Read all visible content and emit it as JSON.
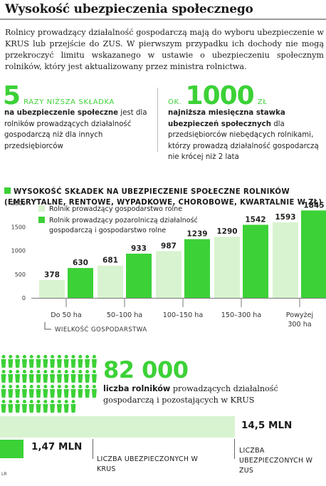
{
  "title": "Wysokość ubezpieczenia społecznego",
  "intro": "Rolnicy prowadzący działalność gospodarczą mają do wyboru ubezpieczenie w KRUS lub przejście do ZUS. W pierwszym przypadku ich dochody nie mogą przekroczyć limitu wskazanego w ustawie o ubezpieczeniu społecznym rolników, który jest aktualizowany przez ministra rolnictwa.",
  "stat_left": {
    "number": "5",
    "unit": "razy niższa składka",
    "desc_bold": "na ubezpieczenie społeczne",
    "desc_rest": " jest dla rolników prowadzących działalność gospodarczą niż dla innych przedsiębiorców"
  },
  "stat_right": {
    "prefix": "ok.",
    "number": "1000",
    "unit": "zł",
    "desc_bold": "najniższa miesięczna stawka ubezpieczeń społecznych",
    "desc_rest": " dla przedsiębiorców niebędących rolnikami, którzy prowadzą działalność gospodarczą nie krócej niż 2 lata"
  },
  "chart_title": "Wysokość składek na ubezpieczenie społeczne rolników (emerytalne, rentowe, wypadkowe, chorobowe, kwartalnie w zł)",
  "chart_data": {
    "type": "bar",
    "title": "Wysokość składek na ubezpieczenie społeczne rolników (emerytalne, rentowe, wypadkowe, chorobowe, kwartalnie w zł)",
    "categories": [
      "Do 50 ha",
      "50–100 ha",
      "100–150 ha",
      "150–300 ha",
      "Powyżej 300 ha"
    ],
    "series": [
      {
        "name": "Rolnik prowadzący gospodarstwo rolne",
        "color": "#d8f3cf",
        "values": [
          378,
          681,
          987,
          1290,
          1593
        ]
      },
      {
        "name": "Rolnik prowadzący pozarolniczą działalność gospodarczą i gospodarstwo rolne",
        "color": "#3cd137",
        "values": [
          630,
          933,
          1239,
          1542,
          1845
        ]
      }
    ],
    "xlabel": "Wielkość gospodarstwa",
    "ylabel": "",
    "ylim": [
      0,
      2000
    ],
    "yticks": [
      0,
      500,
      1000,
      1500,
      2000
    ],
    "legend": "top-left",
    "grid": false
  },
  "count": {
    "number": "82 000",
    "desc_bold": "liczba rolników",
    "desc_rest": " prowadzących działalność gospodarczą i pozostających w KRUS"
  },
  "comparison": {
    "krus": {
      "value": "1,47 MLN",
      "amount": 1.47,
      "label": "Liczba ubezpieczonych w KRUS",
      "color": "#3cd137"
    },
    "zus": {
      "value": "14,5 MLN",
      "amount": 14.5,
      "label": "Liczba ubezpieczonych w ZUS",
      "color": "#d8f3cf"
    }
  },
  "credit": "LR"
}
